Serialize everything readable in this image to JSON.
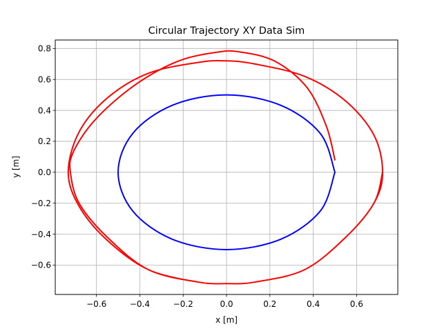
{
  "chart_data": {
    "type": "line",
    "title": "Circular Trajectory XY Data Sim",
    "xlabel": "x [m]",
    "ylabel": "y [m]",
    "xlim": [
      -0.79,
      0.79
    ],
    "ylim": [
      -0.79,
      0.855
    ],
    "xticks": [
      -0.6,
      -0.4,
      -0.2,
      0.0,
      0.2,
      0.4,
      0.6
    ],
    "xtick_labels": [
      "−0.6",
      "−0.4",
      "−0.2",
      "0.0",
      "0.2",
      "0.4",
      "0.6"
    ],
    "yticks": [
      -0.6,
      -0.4,
      -0.2,
      0.0,
      0.2,
      0.4,
      0.6,
      0.8
    ],
    "ytick_labels": [
      "−0.6",
      "−0.4",
      "−0.2",
      "0.0",
      "0.2",
      "0.4",
      "0.6",
      "0.8"
    ],
    "grid": true,
    "series": [
      {
        "color": "#0000ff",
        "x": [
          0.5,
          0.433,
          0.25,
          0.0,
          -0.25,
          -0.433,
          -0.5,
          -0.433,
          -0.25,
          0.0,
          0.25,
          0.433,
          0.5
        ],
        "y": [
          0.0,
          0.25,
          0.433,
          0.5,
          0.433,
          0.25,
          0.0,
          -0.25,
          -0.433,
          -0.5,
          -0.433,
          -0.25,
          0.0
        ]
      },
      {
        "color": "#ff0000",
        "x": [
          0.5,
          0.46,
          0.37,
          0.22,
          0.05,
          -0.05,
          -0.2,
          -0.35,
          -0.5,
          -0.63,
          -0.71,
          -0.72,
          -0.68,
          -0.55,
          -0.36,
          -0.13,
          0.0,
          0.13,
          0.36,
          0.55,
          0.68,
          0.72,
          0.68,
          0.55,
          0.36,
          0.13,
          0.0,
          -0.13,
          -0.36,
          -0.55,
          -0.68,
          -0.73,
          -0.68,
          -0.55,
          -0.36,
          -0.13,
          0.0,
          0.13,
          0.36,
          0.55,
          0.68,
          0.72
        ],
        "y": [
          0.08,
          0.3,
          0.55,
          0.72,
          0.78,
          0.775,
          0.73,
          0.63,
          0.48,
          0.3,
          0.12,
          0.0,
          -0.2,
          -0.42,
          -0.63,
          -0.71,
          -0.72,
          -0.71,
          -0.63,
          -0.42,
          -0.2,
          0.0,
          0.24,
          0.46,
          0.62,
          0.7,
          0.72,
          0.71,
          0.64,
          0.48,
          0.26,
          0.0,
          -0.22,
          -0.44,
          -0.63,
          -0.71,
          -0.72,
          -0.71,
          -0.63,
          -0.42,
          -0.2,
          0.0
        ]
      }
    ]
  }
}
